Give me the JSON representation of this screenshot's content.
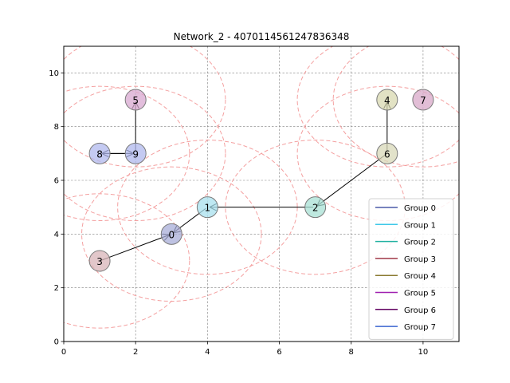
{
  "chart_data": {
    "type": "scatter",
    "title": "Network_2 - 4070114561247836348",
    "xlabel": "",
    "ylabel": "",
    "xlim": [
      0,
      11
    ],
    "ylim": [
      0,
      10.99
    ],
    "xticks": [
      0,
      2,
      4,
      6,
      8,
      10
    ],
    "yticks": [
      0,
      2,
      4,
      6,
      8,
      10
    ],
    "grid": true,
    "legend_position": "lower-right",
    "nodes": [
      {
        "id": "0",
        "x": 3,
        "y": 4,
        "color": "#a8aed8"
      },
      {
        "id": "1",
        "x": 4,
        "y": 5,
        "color": "#a8e0ee"
      },
      {
        "id": "2",
        "x": 7,
        "y": 5,
        "color": "#a8e0d4"
      },
      {
        "id": "3",
        "x": 1,
        "y": 3,
        "color": "#d8b4b8"
      },
      {
        "id": "4",
        "x": 9,
        "y": 9,
        "color": "#d8d8b0"
      },
      {
        "id": "5",
        "x": 2,
        "y": 9,
        "color": "#d8a8d0"
      },
      {
        "id": "6",
        "x": 9,
        "y": 7,
        "color": "#d8d8b8"
      },
      {
        "id": "7",
        "x": 10,
        "y": 9,
        "color": "#d8a8c8"
      },
      {
        "id": "8",
        "x": 1,
        "y": 7,
        "color": "#b0b8ee"
      },
      {
        "id": "9",
        "x": 2,
        "y": 7,
        "color": "#b0b8ee"
      }
    ],
    "edges": [
      {
        "from": "1",
        "to": "0"
      },
      {
        "from": "2",
        "to": "1"
      },
      {
        "from": "3",
        "to": "0"
      },
      {
        "from": "6",
        "to": "2"
      },
      {
        "from": "6",
        "to": "4"
      },
      {
        "from": "9",
        "to": "5"
      },
      {
        "from": "9",
        "to": "8"
      },
      {
        "from": "8",
        "to": "9"
      }
    ],
    "range_circles": [
      {
        "cx": 3,
        "cy": 4,
        "r": 2.5
      },
      {
        "cx": 4,
        "cy": 5,
        "r": 2.5
      },
      {
        "cx": 7,
        "cy": 5,
        "r": 2.5
      },
      {
        "cx": 1,
        "cy": 3,
        "r": 2.5
      },
      {
        "cx": 9,
        "cy": 9,
        "r": 2.5
      },
      {
        "cx": 2,
        "cy": 9,
        "r": 2.5
      },
      {
        "cx": 9,
        "cy": 7,
        "r": 2.5
      },
      {
        "cx": 10,
        "cy": 9,
        "r": 2.5
      },
      {
        "cx": 1,
        "cy": 7,
        "r": 2.5
      },
      {
        "cx": 2,
        "cy": 7,
        "r": 2.5
      }
    ],
    "legend": [
      {
        "label": "Group 0",
        "color": "#4c5aa8"
      },
      {
        "label": "Group 1",
        "color": "#40c8e8"
      },
      {
        "label": "Group 2",
        "color": "#20b0a0"
      },
      {
        "label": "Group 3",
        "color": "#a03848"
      },
      {
        "label": "Group 4",
        "color": "#8a7a30"
      },
      {
        "label": "Group 5",
        "color": "#a020b0"
      },
      {
        "label": "Group 6",
        "color": "#600060"
      },
      {
        "label": "Group 7",
        "color": "#3a64d0"
      }
    ]
  }
}
